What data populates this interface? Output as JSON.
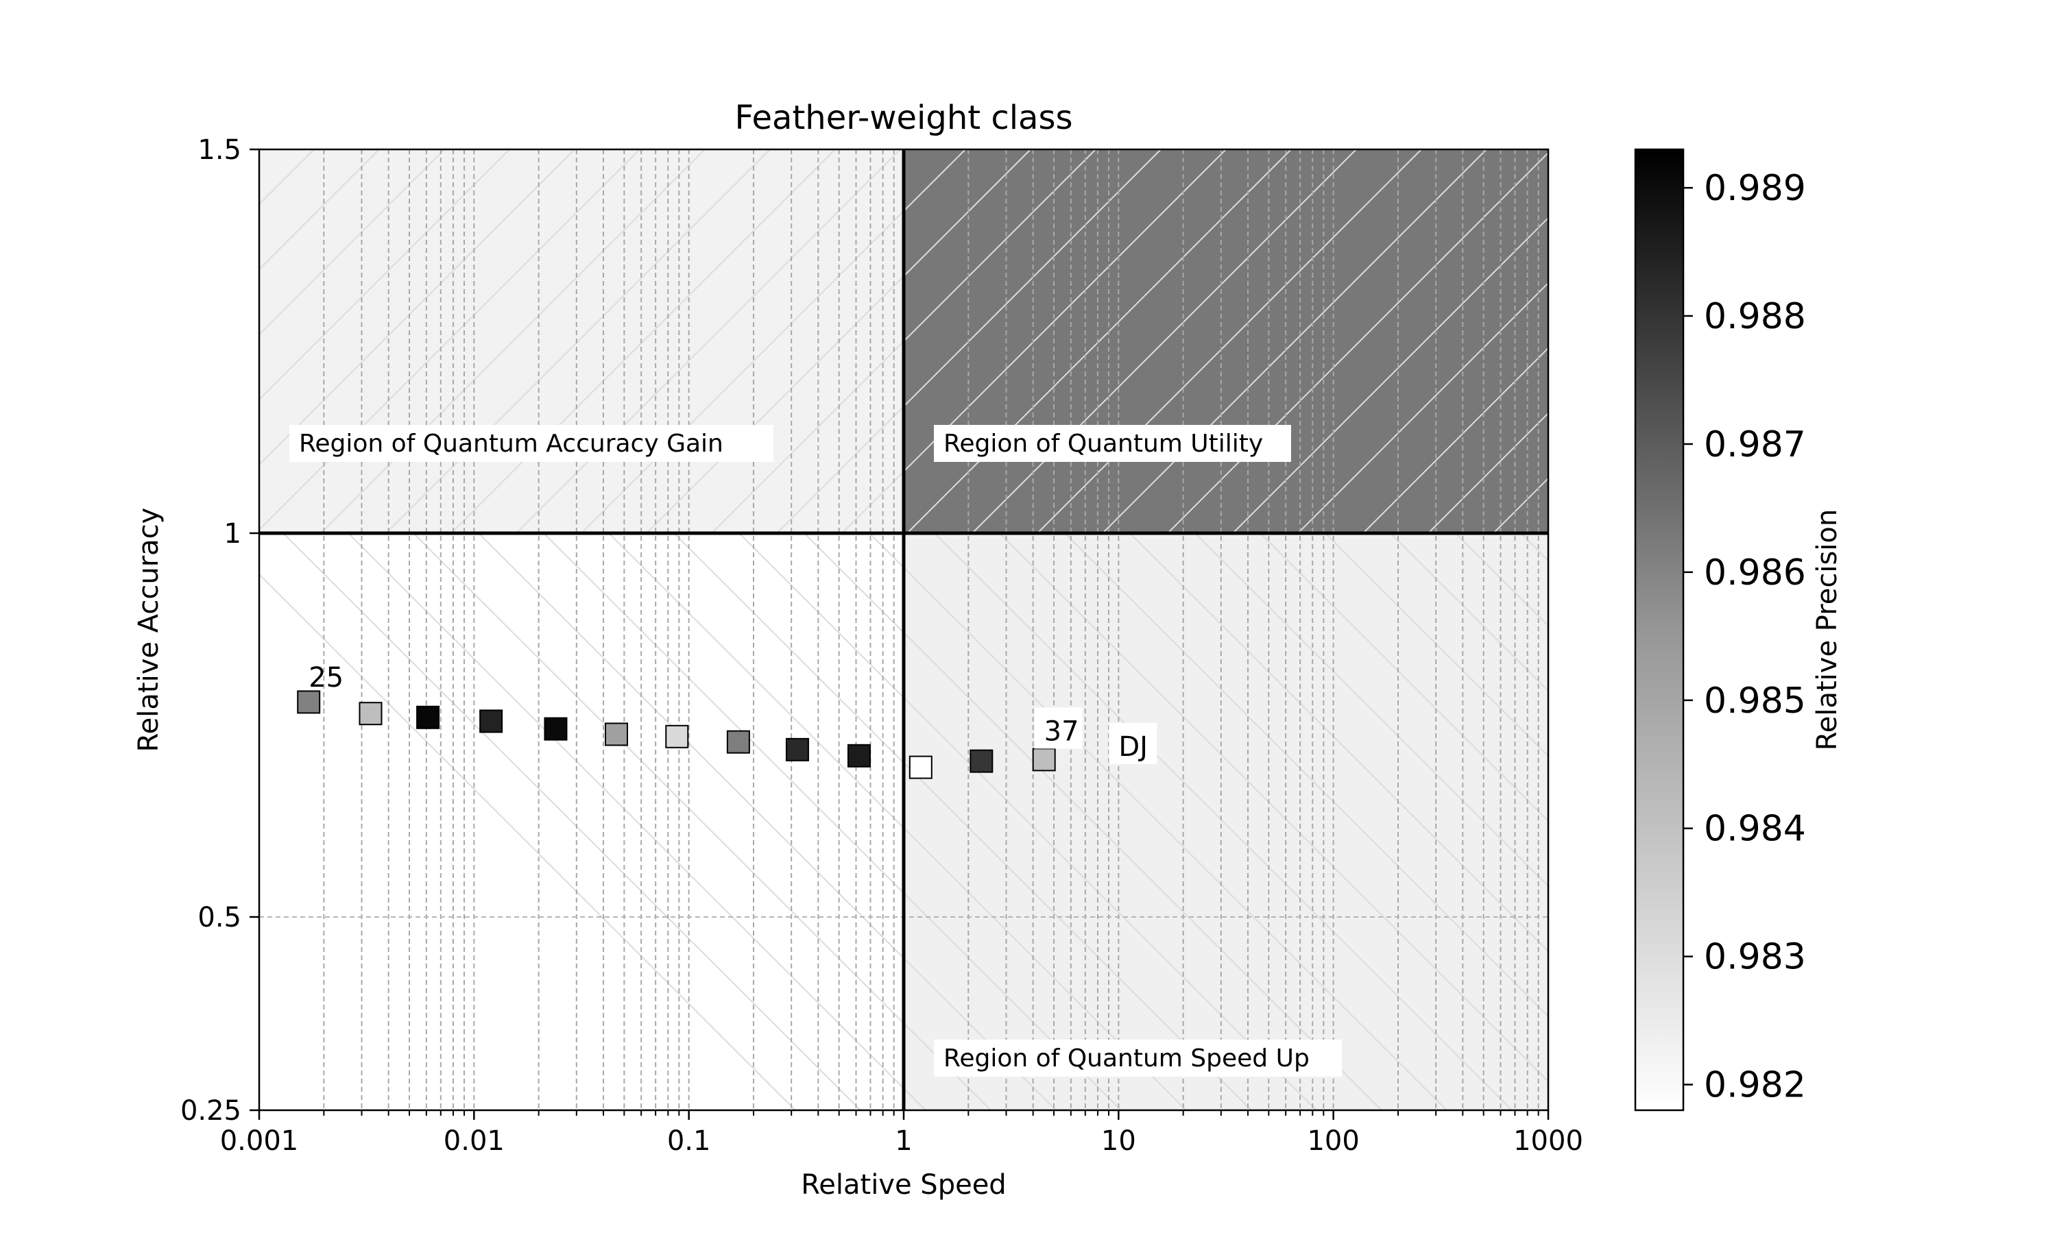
{
  "chart_data": {
    "type": "scatter",
    "title": "Feather-weight class",
    "xlabel": "Relative Speed",
    "ylabel": "Relative Accuracy",
    "xscale": "log",
    "xlim": [
      0.001,
      1000
    ],
    "ylim": [
      0.25,
      1.5
    ],
    "xticks": [
      {
        "value": 0.001,
        "label": "0.001"
      },
      {
        "value": 0.01,
        "label": "0.01"
      },
      {
        "value": 0.1,
        "label": "0.1"
      },
      {
        "value": 1,
        "label": "1"
      },
      {
        "value": 10,
        "label": "10"
      },
      {
        "value": 100,
        "label": "100"
      },
      {
        "value": 1000,
        "label": "1000"
      }
    ],
    "yticks": [
      {
        "value": 0.25,
        "label": "0.25"
      },
      {
        "value": 0.5,
        "label": "0.5"
      },
      {
        "value": 1,
        "label": "1"
      },
      {
        "value": 1.5,
        "label": "1.5"
      }
    ],
    "regions": [
      {
        "label": "Region of Quantum Accuracy Gain",
        "x": [
          0.001,
          1
        ],
        "y": [
          1,
          1.5
        ],
        "color": "#f2f2f2"
      },
      {
        "label": "Region of Quantum Utility",
        "x": [
          1,
          1000
        ],
        "y": [
          1,
          1.5
        ],
        "color": "#787878"
      },
      {
        "label": "Region of Quantum Speed Up",
        "x": [
          1,
          1000
        ],
        "y": [
          0.25,
          1
        ],
        "color": "#f0f0f0"
      }
    ],
    "colorbar": {
      "label": "Relative Precision",
      "min": 0.9818,
      "max": 0.9893,
      "ticks": [
        "0.982",
        "0.983",
        "0.984",
        "0.985",
        "0.986",
        "0.987",
        "0.988",
        "0.989"
      ],
      "tick_values": [
        0.982,
        0.983,
        0.984,
        0.985,
        0.986,
        0.987,
        0.988,
        0.989
      ],
      "colormap": "Greys"
    },
    "points": [
      {
        "x": 0.0017,
        "y": 0.78,
        "precision": 0.9855
      },
      {
        "x": 0.0033,
        "y": 0.765,
        "precision": 0.9837
      },
      {
        "x": 0.0061,
        "y": 0.76,
        "precision": 0.9891
      },
      {
        "x": 0.012,
        "y": 0.755,
        "precision": 0.9883
      },
      {
        "x": 0.024,
        "y": 0.745,
        "precision": 0.989
      },
      {
        "x": 0.046,
        "y": 0.738,
        "precision": 0.9846
      },
      {
        "x": 0.088,
        "y": 0.735,
        "precision": 0.9829
      },
      {
        "x": 0.17,
        "y": 0.728,
        "precision": 0.9856
      },
      {
        "x": 0.32,
        "y": 0.718,
        "precision": 0.9881
      },
      {
        "x": 0.62,
        "y": 0.71,
        "precision": 0.9885
      },
      {
        "x": 1.2,
        "y": 0.695,
        "precision": 0.9818
      },
      {
        "x": 2.3,
        "y": 0.703,
        "precision": 0.9877
      },
      {
        "x": 4.5,
        "y": 0.705,
        "precision": 0.9837
      }
    ],
    "annotations": [
      {
        "text": "25",
        "x": 0.0017,
        "y": 0.8
      },
      {
        "text": "37",
        "x": 4.5,
        "y": 0.73
      },
      {
        "text": "DJ",
        "x": 10,
        "y": 0.71
      }
    ]
  }
}
